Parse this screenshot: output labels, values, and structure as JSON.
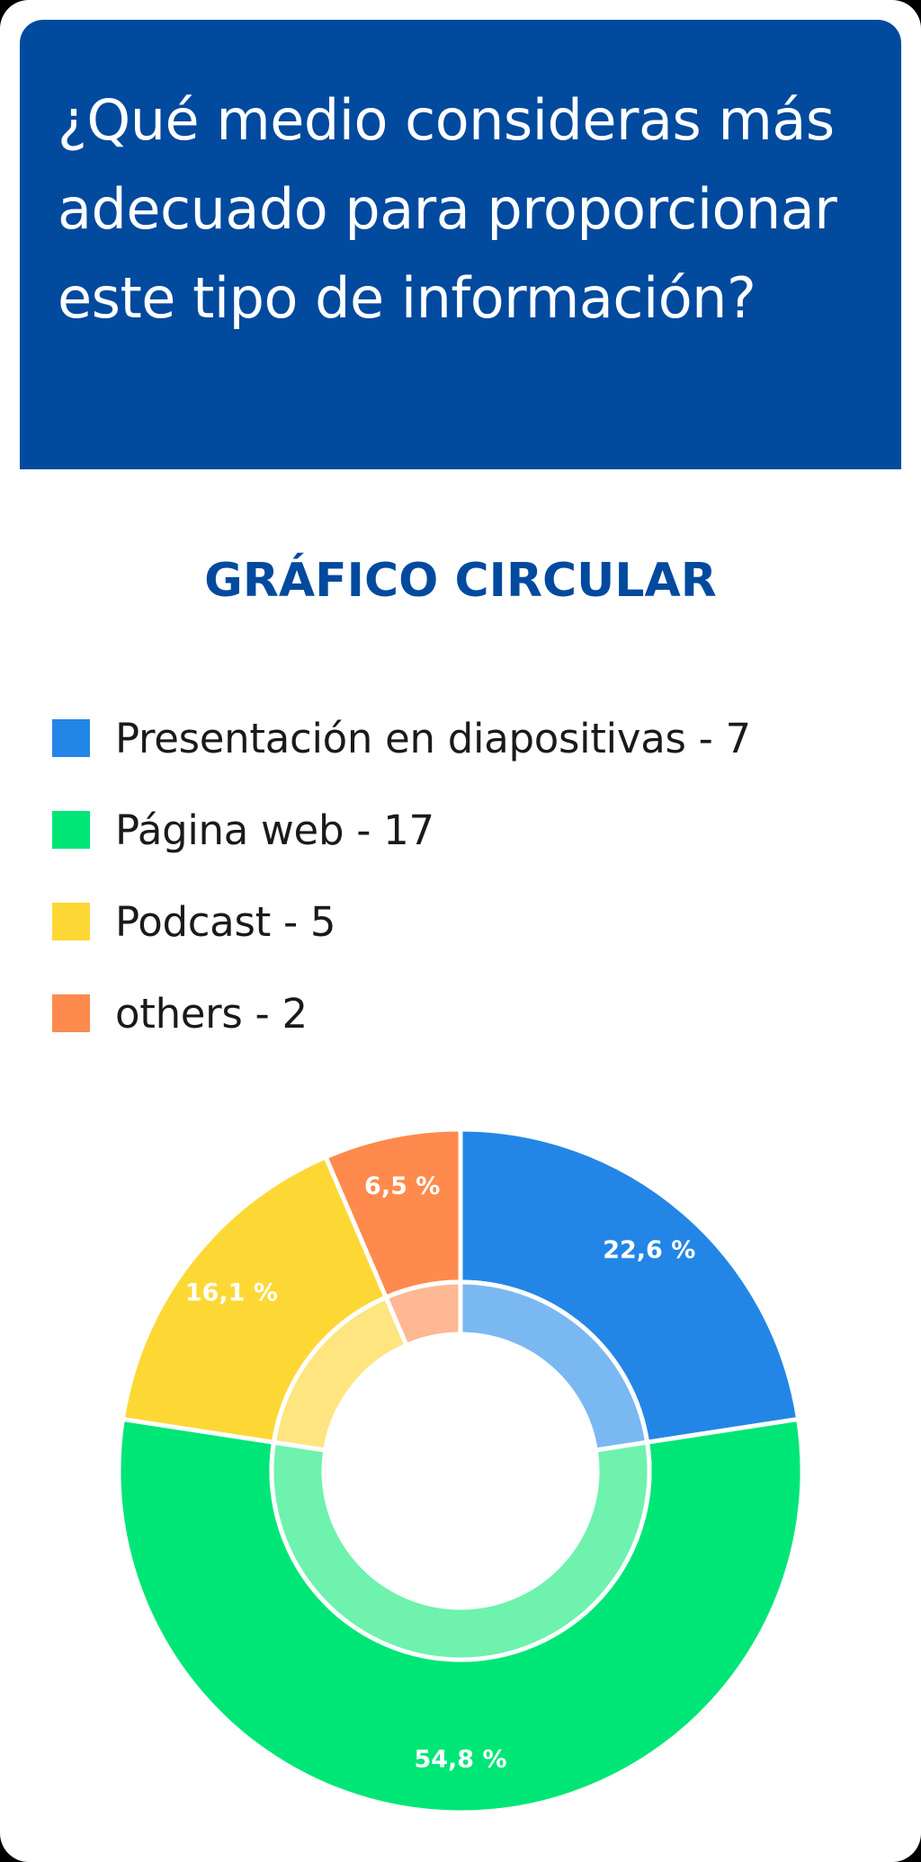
{
  "question": {
    "title": "¿Qué medio consideras más adecuado para proporcionar este tipo de información?"
  },
  "chart_data": {
    "type": "pie",
    "title": "GRÁFICO CIRCULAR",
    "categories": [
      "Presentación en diapositivas",
      "Página web",
      "Podcast",
      "others"
    ],
    "values": [
      7,
      17,
      5,
      2
    ],
    "legend_labels": [
      "Presentación en diapositivas - 7",
      "Página web - 17",
      "Podcast - 5",
      "others - 2"
    ],
    "slice_labels": [
      "22,6 %",
      "54,8 %",
      "16,1 %",
      "6,5 %"
    ],
    "colors": [
      "#2386e6",
      "#00e676",
      "#fdd835",
      "#ff8a4d"
    ],
    "inner_colors": [
      "#7ab8f2",
      "#6ef2ae",
      "#fee57f",
      "#ffb894"
    ],
    "legend_position": "top"
  }
}
